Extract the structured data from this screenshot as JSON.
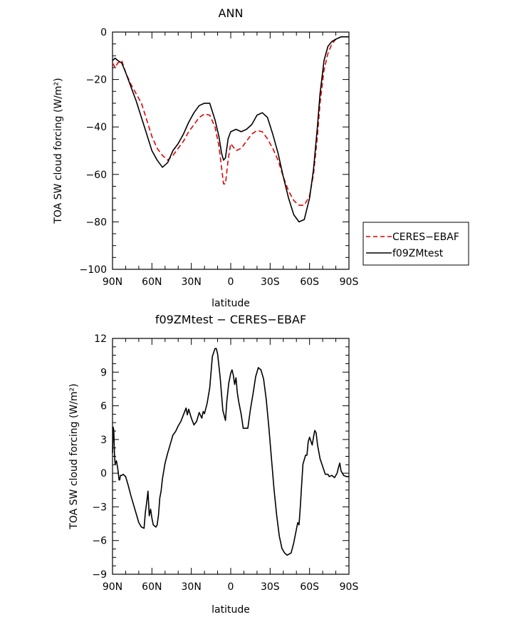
{
  "chart_data": [
    {
      "type": "line",
      "title": "ANN",
      "xlabel": "latitude",
      "ylabel": "TOA SW cloud forcing (W/m²)",
      "xlim": [
        90,
        -90
      ],
      "ylim": [
        -100,
        0
      ],
      "xticks": [
        {
          "value": 90,
          "label": "90N"
        },
        {
          "value": 60,
          "label": "60N"
        },
        {
          "value": 30,
          "label": "30N"
        },
        {
          "value": 0,
          "label": "0"
        },
        {
          "value": -30,
          "label": "30S"
        },
        {
          "value": -60,
          "label": "60S"
        },
        {
          "value": -90,
          "label": "90S"
        }
      ],
      "yticks": [
        {
          "value": 0,
          "label": "0"
        },
        {
          "value": -20,
          "label": "−20"
        },
        {
          "value": -40,
          "label": "−40"
        },
        {
          "value": -60,
          "label": "−60"
        },
        {
          "value": -80,
          "label": "−80"
        },
        {
          "value": -100,
          "label": "−100"
        }
      ],
      "legend": "right",
      "series": [
        {
          "name": "CERES−EBAF",
          "color": "#e00000",
          "dash": true,
          "points": [
            [
              90,
              -13
            ],
            [
              88,
              -15
            ],
            [
              86,
              -13
            ],
            [
              83,
              -12
            ],
            [
              80,
              -17
            ],
            [
              76,
              -22
            ],
            [
              72,
              -26
            ],
            [
              68,
              -30
            ],
            [
              64,
              -37
            ],
            [
              60,
              -44
            ],
            [
              56,
              -49
            ],
            [
              52,
              -52
            ],
            [
              48,
              -54
            ],
            [
              44,
              -52
            ],
            [
              40,
              -49
            ],
            [
              36,
              -46
            ],
            [
              32,
              -42
            ],
            [
              28,
              -39
            ],
            [
              24,
              -36
            ],
            [
              20,
              -34.5
            ],
            [
              16,
              -35
            ],
            [
              12,
              -40
            ],
            [
              9,
              -48
            ],
            [
              7,
              -57
            ],
            [
              5.5,
              -64
            ],
            [
              4,
              -64
            ],
            [
              2,
              -54
            ],
            [
              0,
              -47
            ],
            [
              -4,
              -50
            ],
            [
              -8,
              -49
            ],
            [
              -12,
              -46
            ],
            [
              -16,
              -43
            ],
            [
              -20,
              -41.5
            ],
            [
              -24,
              -42
            ],
            [
              -28,
              -45
            ],
            [
              -32,
              -49
            ],
            [
              -36,
              -54
            ],
            [
              -40,
              -61
            ],
            [
              -44,
              -67
            ],
            [
              -48,
              -71
            ],
            [
              -52,
              -73
            ],
            [
              -56,
              -73
            ],
            [
              -60,
              -69
            ],
            [
              -63,
              -60
            ],
            [
              -66,
              -44
            ],
            [
              -68,
              -30
            ],
            [
              -71,
              -16
            ],
            [
              -74,
              -9
            ],
            [
              -77,
              -5
            ],
            [
              -80,
              -3
            ],
            [
              -84,
              -2
            ],
            [
              -88,
              -2
            ],
            [
              -90,
              -2
            ]
          ]
        },
        {
          "name": "f09ZMtest",
          "color": "#000000",
          "dash": false,
          "points": [
            [
              90,
              -12
            ],
            [
              88,
              -11
            ],
            [
              86,
              -12
            ],
            [
              83,
              -13
            ],
            [
              80,
              -17
            ],
            [
              76,
              -23
            ],
            [
              72,
              -29
            ],
            [
              68,
              -36
            ],
            [
              64,
              -43
            ],
            [
              60,
              -50
            ],
            [
              56,
              -54
            ],
            [
              52,
              -57
            ],
            [
              48,
              -55
            ],
            [
              44,
              -50
            ],
            [
              40,
              -47
            ],
            [
              36,
              -43
            ],
            [
              32,
              -38
            ],
            [
              28,
              -34
            ],
            [
              24,
              -31
            ],
            [
              20,
              -30
            ],
            [
              16,
              -30
            ],
            [
              12,
              -37
            ],
            [
              9,
              -44
            ],
            [
              7,
              -51
            ],
            [
              5.5,
              -54
            ],
            [
              4,
              -53
            ],
            [
              2,
              -45
            ],
            [
              0,
              -42
            ],
            [
              -4,
              -41
            ],
            [
              -8,
              -42
            ],
            [
              -12,
              -41
            ],
            [
              -16,
              -39
            ],
            [
              -20,
              -35
            ],
            [
              -24,
              -34
            ],
            [
              -28,
              -36
            ],
            [
              -32,
              -43
            ],
            [
              -36,
              -51
            ],
            [
              -40,
              -61
            ],
            [
              -44,
              -70
            ],
            [
              -48,
              -77
            ],
            [
              -52,
              -80
            ],
            [
              -56,
              -79
            ],
            [
              -60,
              -70
            ],
            [
              -63,
              -58
            ],
            [
              -66,
              -40
            ],
            [
              -68,
              -26
            ],
            [
              -71,
              -12
            ],
            [
              -74,
              -6
            ],
            [
              -77,
              -4
            ],
            [
              -80,
              -3
            ],
            [
              -84,
              -2
            ],
            [
              -88,
              -2
            ],
            [
              -90,
              -2
            ]
          ]
        }
      ]
    },
    {
      "type": "line",
      "title": "f09ZMtest − CERES−EBAF",
      "xlabel": "latitude",
      "ylabel": "TOA SW cloud forcing (W/m²)",
      "xlim": [
        90,
        -90
      ],
      "ylim": [
        -9,
        12
      ],
      "xticks": [
        {
          "value": 90,
          "label": "90N"
        },
        {
          "value": 60,
          "label": "60N"
        },
        {
          "value": 30,
          "label": "30N"
        },
        {
          "value": 0,
          "label": "0"
        },
        {
          "value": -30,
          "label": "30S"
        },
        {
          "value": -60,
          "label": "60S"
        },
        {
          "value": -90,
          "label": "90S"
        }
      ],
      "yticks": [
        {
          "value": 12,
          "label": "12"
        },
        {
          "value": 9,
          "label": "9"
        },
        {
          "value": 6,
          "label": "6"
        },
        {
          "value": 3,
          "label": "3"
        },
        {
          "value": 0,
          "label": "0"
        },
        {
          "value": -3,
          "label": "−3"
        },
        {
          "value": -6,
          "label": "−6"
        },
        {
          "value": -9,
          "label": "−9"
        }
      ],
      "series": [
        {
          "name": "",
          "color": "#000000",
          "dash": false,
          "points": [
            [
              90,
              1.8
            ],
            [
              89.5,
              4.1
            ],
            [
              89,
              3.8
            ],
            [
              88.5,
              1.6
            ],
            [
              88,
              0.8
            ],
            [
              87,
              1.1
            ],
            [
              86,
              0.4
            ],
            [
              85,
              -0.6
            ],
            [
              84.5,
              -0.6
            ],
            [
              84,
              -0.2
            ],
            [
              83,
              -0.2
            ],
            [
              82,
              -0.1
            ],
            [
              80,
              -0.3
            ],
            [
              78,
              -1.1
            ],
            [
              76,
              -2.0
            ],
            [
              74,
              -2.8
            ],
            [
              72,
              -3.6
            ],
            [
              70,
              -4.4
            ],
            [
              68,
              -4.8
            ],
            [
              66,
              -4.9
            ],
            [
              65,
              -3.5
            ],
            [
              64,
              -2.6
            ],
            [
              63,
              -1.6
            ],
            [
              62,
              -3.8
            ],
            [
              61,
              -3.2
            ],
            [
              60,
              -4.0
            ],
            [
              59,
              -4.6
            ],
            [
              57,
              -4.8
            ],
            [
              56,
              -4.6
            ],
            [
              55,
              -3.7
            ],
            [
              54,
              -2.2
            ],
            [
              53,
              -1.6
            ],
            [
              52,
              -0.5
            ],
            [
              50,
              0.9
            ],
            [
              48,
              1.8
            ],
            [
              46,
              2.6
            ],
            [
              44,
              3.4
            ],
            [
              42,
              3.7
            ],
            [
              40,
              4.2
            ],
            [
              38,
              4.6
            ],
            [
              36,
              5.2
            ],
            [
              34,
              5.8
            ],
            [
              33,
              5.2
            ],
            [
              32,
              5.7
            ],
            [
              30,
              4.9
            ],
            [
              28,
              4.3
            ],
            [
              26,
              4.6
            ],
            [
              24,
              5.4
            ],
            [
              22,
              4.9
            ],
            [
              21,
              5.5
            ],
            [
              20,
              5.3
            ],
            [
              18,
              6.2
            ],
            [
              16,
              7.6
            ],
            [
              14,
              10.4
            ],
            [
              12,
              11.1
            ],
            [
              11,
              11.1
            ],
            [
              10,
              10.6
            ],
            [
              8,
              8.5
            ],
            [
              6,
              5.6
            ],
            [
              4,
              4.7
            ],
            [
              3,
              6.4
            ],
            [
              1.5,
              8.0
            ],
            [
              0,
              8.9
            ],
            [
              -1,
              9.2
            ],
            [
              -2,
              8.7
            ],
            [
              -3,
              7.9
            ],
            [
              -4,
              8.5
            ],
            [
              -5,
              7.2
            ],
            [
              -6,
              6.4
            ],
            [
              -8,
              5.2
            ],
            [
              -9.5,
              4.0
            ],
            [
              -11,
              4.0
            ],
            [
              -13,
              4.0
            ],
            [
              -15,
              5.7
            ],
            [
              -17,
              7.1
            ],
            [
              -19,
              8.6
            ],
            [
              -21,
              9.4
            ],
            [
              -23,
              9.2
            ],
            [
              -25,
              8.4
            ],
            [
              -27,
              6.6
            ],
            [
              -29,
              4.1
            ],
            [
              -31,
              1.3
            ],
            [
              -33,
              -1.5
            ],
            [
              -35,
              -3.8
            ],
            [
              -37,
              -5.6
            ],
            [
              -39,
              -6.7
            ],
            [
              -41,
              -7.1
            ],
            [
              -43,
              -7.3
            ],
            [
              -46,
              -7.1
            ],
            [
              -48,
              -6.2
            ],
            [
              -50,
              -5.0
            ],
            [
              -51,
              -4.4
            ],
            [
              -52,
              -4.6
            ],
            [
              -53,
              -2.9
            ],
            [
              -54,
              -1.0
            ],
            [
              -55,
              0.8
            ],
            [
              -57,
              1.6
            ],
            [
              -58,
              1.6
            ],
            [
              -59,
              2.8
            ],
            [
              -60,
              3.2
            ],
            [
              -62,
              2.5
            ],
            [
              -63,
              3.2
            ],
            [
              -64,
              3.8
            ],
            [
              -65,
              3.6
            ],
            [
              -66,
              2.6
            ],
            [
              -68,
              1.3
            ],
            [
              -70,
              0.6
            ],
            [
              -72,
              -0.1
            ],
            [
              -74,
              -0.1
            ],
            [
              -75,
              -0.3
            ],
            [
              -77,
              -0.2
            ],
            [
              -79,
              -0.4
            ],
            [
              -81,
              0.0
            ],
            [
              -82,
              0.5
            ],
            [
              -83,
              0.9
            ],
            [
              -84,
              0.2
            ],
            [
              -86,
              -0.2
            ],
            [
              -88,
              -0.3
            ],
            [
              -90,
              -0.3
            ]
          ]
        }
      ]
    }
  ],
  "legend_labels": [
    "CERES−EBAF",
    "f09ZMtest"
  ]
}
